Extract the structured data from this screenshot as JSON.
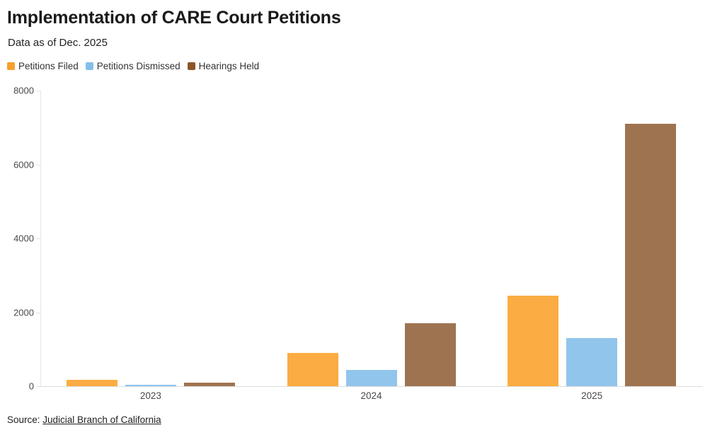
{
  "header": {
    "title": "Implementation of CARE Court Petitions",
    "subtitle": "Data as of Dec. 2025"
  },
  "legend": {
    "items": [
      {
        "label": "Petitions Filed",
        "color": "#F5A02C"
      },
      {
        "label": "Petitions Dismissed",
        "color": "#82C0EA"
      },
      {
        "label": "Hearings Held",
        "color": "#8E5526"
      }
    ]
  },
  "chart_data": {
    "type": "bar",
    "title": "Implementation of CARE Court Petitions",
    "subtitle": "Data as of Dec. 2025",
    "categories": [
      "2023",
      "2024",
      "2025"
    ],
    "series": [
      {
        "name": "Petitions Filed",
        "color": "#FBAC42",
        "values": [
          180,
          900,
          2450
        ]
      },
      {
        "name": "Petitions Dismissed",
        "color": "#92C5EC",
        "values": [
          40,
          440,
          1300
        ]
      },
      {
        "name": "Hearings Held",
        "color": "#9E7350",
        "values": [
          100,
          1700,
          7100
        ]
      }
    ],
    "xlabel": "",
    "ylabel": "",
    "ylim": [
      0,
      8000
    ],
    "yticks": [
      0,
      2000,
      4000,
      6000,
      8000
    ],
    "grid": false,
    "legend_position": "top"
  },
  "footer": {
    "source_prefix": "Source: ",
    "source_link": "Judicial Branch of California"
  }
}
